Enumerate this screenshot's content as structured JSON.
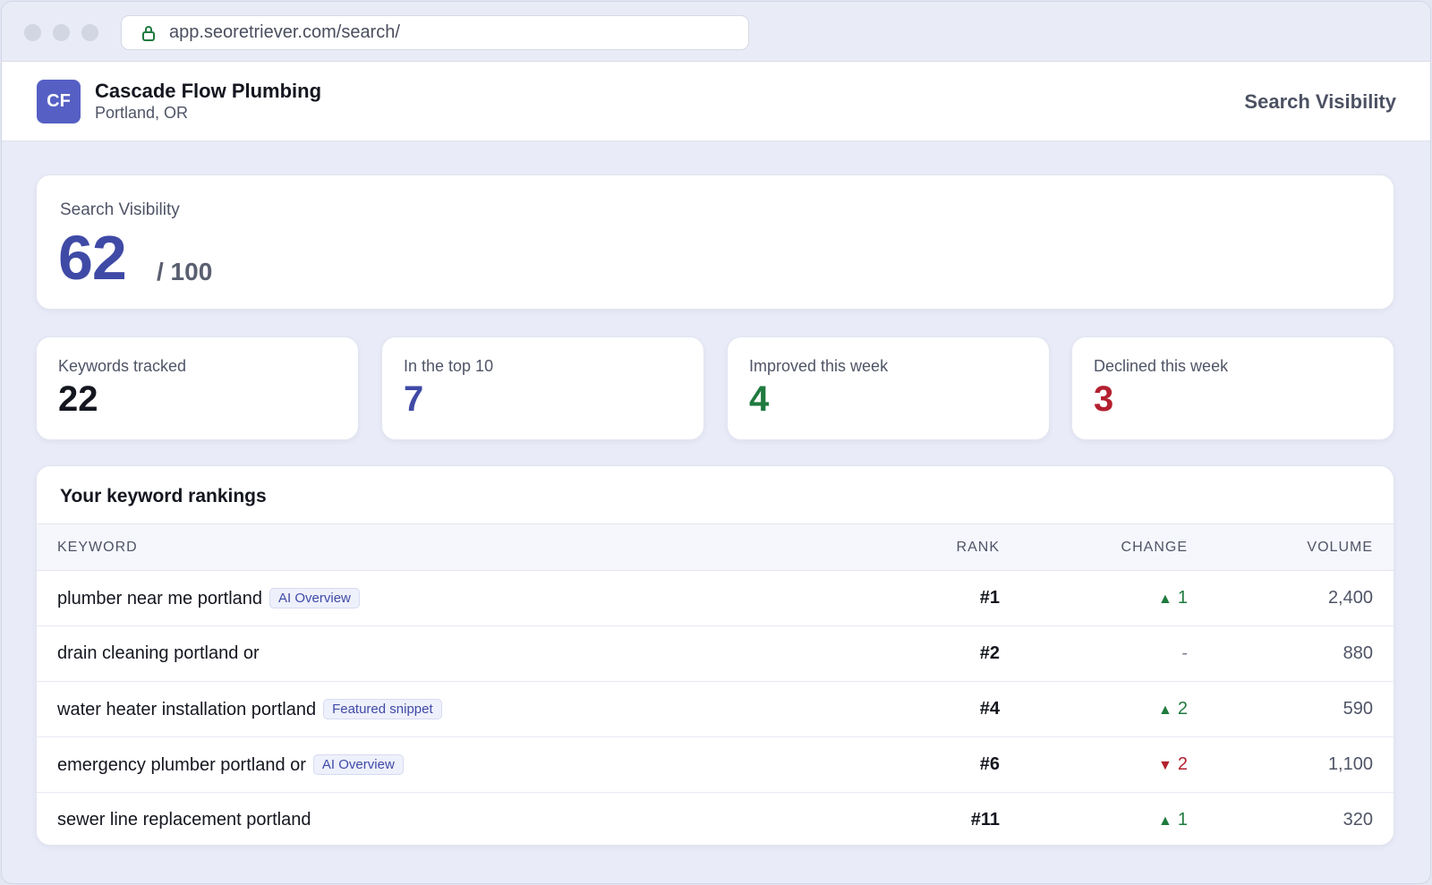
{
  "browser": {
    "url": "app.seoretriever.com/search/"
  },
  "header": {
    "logo_initials": "CF",
    "business_name": "Cascade Flow Plumbing",
    "location": "Portland, OR",
    "page_title": "Search Visibility"
  },
  "score": {
    "label": "Search Visibility",
    "value": "62",
    "max": "/ 100"
  },
  "stats": [
    {
      "label": "Keywords tracked",
      "value": "22",
      "color": "#14161f"
    },
    {
      "label": "In the top 10",
      "value": "7",
      "color": "#3f4aa6"
    },
    {
      "label": "Improved this week",
      "value": "4",
      "color": "#1f7a3e"
    },
    {
      "label": "Declined this week",
      "value": "3",
      "color": "#b3202f"
    }
  ],
  "rankings": {
    "title": "Your keyword rankings",
    "columns": {
      "keyword": "KEYWORD",
      "rank": "RANK",
      "change": "CHANGE",
      "volume": "VOLUME"
    },
    "rows": [
      {
        "keyword": "plumber near me portland",
        "tag": "AI Overview",
        "rank": "#1",
        "change_dir": "up",
        "change": "1",
        "volume": "2,400"
      },
      {
        "keyword": "drain cleaning portland or",
        "tag": "",
        "rank": "#2",
        "change_dir": "flat",
        "change": "-",
        "volume": "880"
      },
      {
        "keyword": "water heater installation portland",
        "tag": "Featured snippet",
        "rank": "#4",
        "change_dir": "up",
        "change": "2",
        "volume": "590"
      },
      {
        "keyword": "emergency plumber portland or",
        "tag": "AI Overview",
        "rank": "#6",
        "change_dir": "down",
        "change": "2",
        "volume": "1,100"
      },
      {
        "keyword": "sewer line replacement portland",
        "tag": "",
        "rank": "#11",
        "change_dir": "up",
        "change": "1",
        "volume": "320"
      }
    ]
  }
}
